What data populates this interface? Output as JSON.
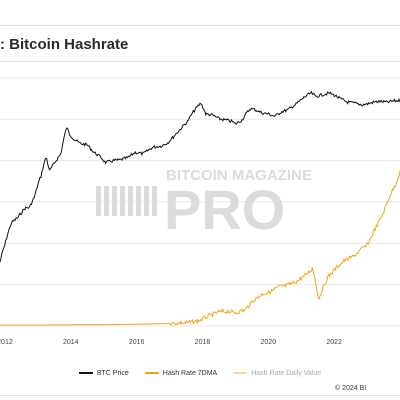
{
  "title": ": Bitcoin Hashrate",
  "watermark": {
    "top": "BITCOIN MAGAZINE",
    "main": "PRO"
  },
  "copyright": "© 2024 BI",
  "colors": {
    "btc_price": "#111111",
    "hash_rate": "#f7a21b",
    "hash_rate_daily": "#fbd69a"
  },
  "legend": [
    {
      "name": "BTC Price",
      "color": "#111111",
      "faded": false
    },
    {
      "name": "Hash Rate 7DMA",
      "color": "#f7a21b",
      "faded": false
    },
    {
      "name": "Hash Rate Daily Value",
      "color": "#fbd69a",
      "faded": true
    }
  ],
  "chart_data": {
    "type": "line",
    "title": ": Bitcoin Hashrate",
    "x_tick_labels": [
      "2012",
      "2014",
      "2016",
      "2018",
      "2020",
      "2022"
    ],
    "x_ticks": [
      2012,
      2014,
      2016,
      2018,
      2020,
      2022
    ],
    "xlim": [
      2011.85,
      2024.0
    ],
    "grid": true,
    "legend_position": "bottom",
    "series": [
      {
        "name": "BTC Price",
        "color": "#111111",
        "log_scale": true,
        "points": [
          [
            2011.85,
            0.12
          ],
          [
            2012.0,
            0.18
          ],
          [
            2012.2,
            0.3
          ],
          [
            2012.4,
            0.34
          ],
          [
            2012.6,
            0.42
          ],
          [
            2012.75,
            0.43
          ],
          [
            2012.9,
            0.55
          ],
          [
            2013.1,
            0.9
          ],
          [
            2013.25,
            1.4
          ],
          [
            2013.35,
            1.0
          ],
          [
            2013.5,
            1.2
          ],
          [
            2013.7,
            1.5
          ],
          [
            2013.88,
            2.8
          ],
          [
            2013.95,
            2.4
          ],
          [
            2014.1,
            2.1
          ],
          [
            2014.3,
            1.9
          ],
          [
            2014.5,
            1.85
          ],
          [
            2014.7,
            1.55
          ],
          [
            2014.9,
            1.4
          ],
          [
            2015.05,
            1.22
          ],
          [
            2015.3,
            1.28
          ],
          [
            2015.5,
            1.3
          ],
          [
            2015.75,
            1.38
          ],
          [
            2015.95,
            1.55
          ],
          [
            2016.2,
            1.5
          ],
          [
            2016.5,
            1.75
          ],
          [
            2016.75,
            1.8
          ],
          [
            2016.95,
            1.95
          ],
          [
            2017.1,
            2.2
          ],
          [
            2017.3,
            2.6
          ],
          [
            2017.55,
            3.2
          ],
          [
            2017.75,
            4.1
          ],
          [
            2017.95,
            4.9
          ],
          [
            2018.1,
            3.8
          ],
          [
            2018.3,
            3.7
          ],
          [
            2018.5,
            3.4
          ],
          [
            2018.7,
            3.3
          ],
          [
            2018.9,
            3.2
          ],
          [
            2019.0,
            3.0
          ],
          [
            2019.2,
            3.3
          ],
          [
            2019.45,
            4.3
          ],
          [
            2019.6,
            4.2
          ],
          [
            2019.8,
            3.9
          ],
          [
            2020.0,
            3.8
          ],
          [
            2020.2,
            3.6
          ],
          [
            2020.4,
            4.0
          ],
          [
            2020.6,
            4.2
          ],
          [
            2020.85,
            4.8
          ],
          [
            2021.0,
            5.3
          ],
          [
            2021.15,
            5.8
          ],
          [
            2021.3,
            6.2
          ],
          [
            2021.45,
            5.7
          ],
          [
            2021.6,
            5.9
          ],
          [
            2021.85,
            6.2
          ],
          [
            2022.0,
            5.9
          ],
          [
            2022.2,
            5.4
          ],
          [
            2022.4,
            5.0
          ],
          [
            2022.6,
            4.9
          ],
          [
            2022.85,
            4.7
          ],
          [
            2023.0,
            4.8
          ],
          [
            2023.2,
            5.0
          ],
          [
            2023.4,
            5.1
          ],
          [
            2023.6,
            5.0
          ],
          [
            2023.8,
            5.15
          ],
          [
            2024.0,
            5.2
          ]
        ]
      },
      {
        "name": "Hash Rate 7DMA",
        "color": "#f7a21b",
        "log_scale": false,
        "points": [
          [
            2011.85,
            0.0
          ],
          [
            2013.0,
            0.0
          ],
          [
            2014.0,
            0.1
          ],
          [
            2015.0,
            0.2
          ],
          [
            2016.0,
            0.5
          ],
          [
            2017.0,
            1.0
          ],
          [
            2017.5,
            1.5
          ],
          [
            2017.9,
            2.8
          ],
          [
            2018.2,
            6.0
          ],
          [
            2018.5,
            8.5
          ],
          [
            2018.8,
            9.0
          ],
          [
            2019.0,
            8.0
          ],
          [
            2019.3,
            10.0
          ],
          [
            2019.55,
            16.0
          ],
          [
            2019.8,
            20.0
          ],
          [
            2020.1,
            22.0
          ],
          [
            2020.3,
            25.0
          ],
          [
            2020.6,
            26.0
          ],
          [
            2020.9,
            29.0
          ],
          [
            2021.15,
            33.0
          ],
          [
            2021.35,
            37.0
          ],
          [
            2021.45,
            27.0
          ],
          [
            2021.52,
            17.0
          ],
          [
            2021.6,
            21.0
          ],
          [
            2021.8,
            31.0
          ],
          [
            2022.0,
            36.0
          ],
          [
            2022.3,
            42.0
          ],
          [
            2022.6,
            45.0
          ],
          [
            2022.85,
            50.0
          ],
          [
            2023.0,
            52.0
          ],
          [
            2023.2,
            61.0
          ],
          [
            2023.45,
            71.0
          ],
          [
            2023.7,
            85.0
          ],
          [
            2023.85,
            91.0
          ],
          [
            2024.0,
            100.0
          ]
        ]
      }
    ]
  }
}
